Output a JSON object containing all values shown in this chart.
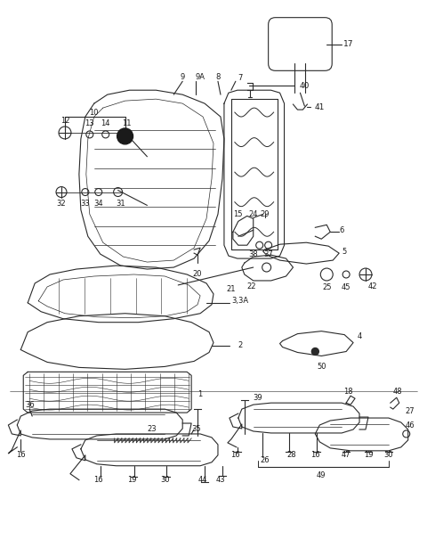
{
  "bg_color": "#f5f5f0",
  "line_color": "#2a2a2a",
  "text_color": "#1a1a1a",
  "fig_width": 4.8,
  "fig_height": 6.15,
  "dpi": 100
}
